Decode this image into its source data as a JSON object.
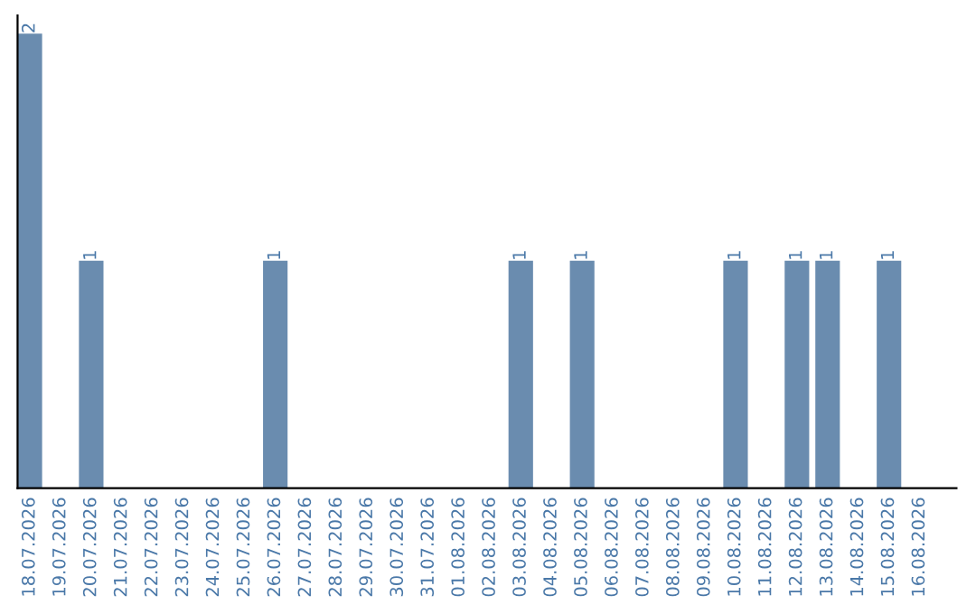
{
  "chart_data": {
    "type": "bar",
    "categories": [
      "18.07.2026",
      "19.07.2026",
      "20.07.2026",
      "21.07.2026",
      "22.07.2026",
      "23.07.2026",
      "24.07.2026",
      "25.07.2026",
      "26.07.2026",
      "27.07.2026",
      "28.07.2026",
      "29.07.2026",
      "30.07.2026",
      "31.07.2026",
      "01.08.2026",
      "02.08.2026",
      "03.08.2026",
      "04.08.2026",
      "05.08.2026",
      "06.08.2026",
      "07.08.2026",
      "08.08.2026",
      "09.08.2026",
      "10.08.2026",
      "11.08.2026",
      "12.08.2026",
      "13.08.2026",
      "14.08.2026",
      "15.08.2026",
      "16.08.2026"
    ],
    "values": [
      2,
      0,
      1,
      0,
      0,
      0,
      0,
      0,
      1,
      0,
      0,
      0,
      0,
      0,
      0,
      0,
      1,
      0,
      1,
      0,
      0,
      0,
      0,
      1,
      0,
      1,
      1,
      0,
      1,
      0
    ],
    "value_labels": [
      "2",
      null,
      "1",
      null,
      null,
      null,
      null,
      null,
      "1",
      null,
      null,
      null,
      null,
      null,
      null,
      null,
      "1",
      null,
      "1",
      null,
      null,
      null,
      null,
      "1",
      null,
      "1",
      "1",
      null,
      "1",
      null
    ],
    "color": "#6a8caf",
    "tick_labels": "x",
    "grid": false,
    "legend": false
  }
}
